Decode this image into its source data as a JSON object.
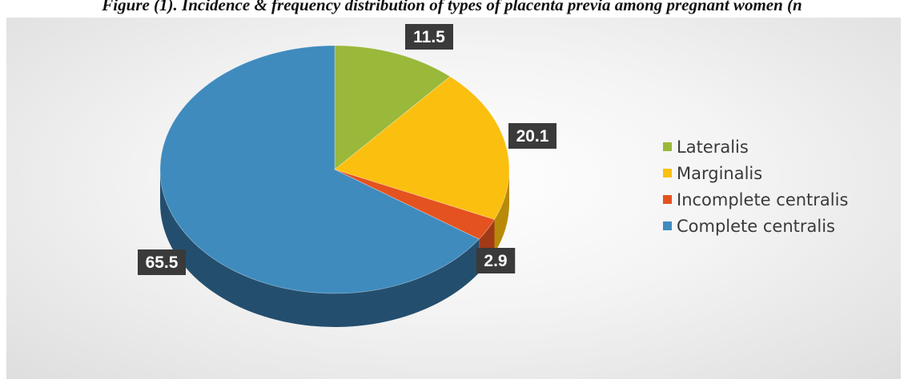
{
  "caption": "Figure (1). Incidence & frequency distribution of types of placenta previa among pregnant women (n",
  "chart_data": {
    "type": "pie",
    "style": "3d",
    "title": "",
    "legend_position": "right",
    "series": [
      {
        "values": [
          11.5,
          20.1,
          2.9,
          65.5
        ],
        "labels": [
          "11.5",
          "20.1",
          "2.9",
          "65.5"
        ]
      }
    ],
    "categories": [
      "Lateralis",
      "Marginalis",
      "Incomplete centralis",
      "Complete centralis"
    ],
    "colors": [
      "#9ab83a",
      "#fbbf10",
      "#e4521f",
      "#3f8bbe"
    ],
    "side_colors": [
      "#6c8426",
      "#b88a08",
      "#a13a16",
      "#244e6e"
    ]
  }
}
